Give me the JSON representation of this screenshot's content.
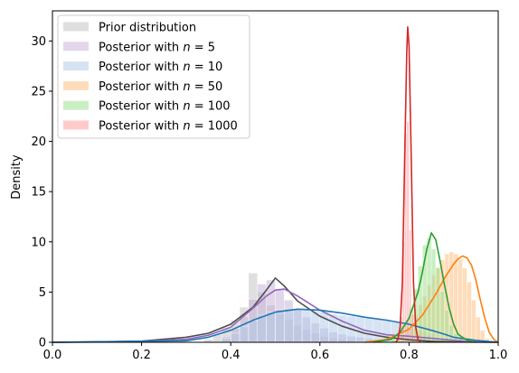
{
  "chart_data": {
    "type": "area",
    "title": "",
    "xlabel": "",
    "ylabel": "Density",
    "xlim": [
      0.0,
      1.0
    ],
    "ylim": [
      0,
      33
    ],
    "xticks": [
      "0.0",
      "0.2",
      "0.4",
      "0.6",
      "0.8",
      "1.0"
    ],
    "yticks": [
      "0",
      "5",
      "10",
      "15",
      "20",
      "25",
      "30"
    ],
    "legend_position": "top-left",
    "grid": false,
    "series": [
      {
        "name": "Prior distribution",
        "line_color": "#4d4d4d",
        "fill_color": "#bfbfbf",
        "bins": {
          "start": 0.34,
          "width": 0.02,
          "heights": [
            0.3,
            0.8,
            1.4,
            2.2,
            3.5,
            6.9,
            5.0,
            3.7,
            2.8,
            2.3,
            1.7,
            1.3,
            0.9,
            0.6,
            0.4,
            0.3,
            0.2
          ]
        },
        "kde": [
          [
            0.0,
            0.0
          ],
          [
            0.1,
            0.03
          ],
          [
            0.2,
            0.12
          ],
          [
            0.3,
            0.5
          ],
          [
            0.35,
            0.9
          ],
          [
            0.4,
            1.8
          ],
          [
            0.45,
            3.5
          ],
          [
            0.48,
            5.2
          ],
          [
            0.5,
            6.4
          ],
          [
            0.52,
            5.6
          ],
          [
            0.55,
            4.1
          ],
          [
            0.6,
            2.6
          ],
          [
            0.65,
            1.6
          ],
          [
            0.7,
            0.9
          ],
          [
            0.75,
            0.5
          ],
          [
            0.8,
            0.25
          ],
          [
            0.85,
            0.1
          ],
          [
            0.9,
            0.04
          ],
          [
            1.0,
            0.0
          ]
        ]
      },
      {
        "name": "Posterior with n = 5",
        "line_color": "#9467bd",
        "fill_color": "#c5b0d5",
        "bins": {
          "start": 0.38,
          "width": 0.02,
          "heights": [
            0.6,
            1.4,
            2.6,
            4.3,
            5.8,
            6.2,
            5.3,
            4.2,
            3.3,
            2.5,
            1.9,
            1.4,
            1.0,
            0.8,
            0.6,
            0.5,
            0.4,
            0.3,
            0.2,
            0.1
          ]
        },
        "kde": [
          [
            0.0,
            0.0
          ],
          [
            0.2,
            0.1
          ],
          [
            0.3,
            0.3
          ],
          [
            0.35,
            0.7
          ],
          [
            0.4,
            1.5
          ],
          [
            0.45,
            3.4
          ],
          [
            0.48,
            4.6
          ],
          [
            0.5,
            5.2
          ],
          [
            0.52,
            5.3
          ],
          [
            0.55,
            4.6
          ],
          [
            0.6,
            3.2
          ],
          [
            0.65,
            2.1
          ],
          [
            0.7,
            1.2
          ],
          [
            0.75,
            0.75
          ],
          [
            0.8,
            0.6
          ],
          [
            0.85,
            0.4
          ],
          [
            0.9,
            0.2
          ],
          [
            0.95,
            0.05
          ],
          [
            1.0,
            0.0
          ]
        ]
      },
      {
        "name": "Posterior with n = 10",
        "line_color": "#1f77b4",
        "fill_color": "#aec7e8",
        "bins": {
          "start": 0.38,
          "width": 0.02,
          "heights": [
            0.4,
            0.9,
            1.6,
            2.2,
            2.7,
            3.0,
            3.3,
            3.4,
            3.3,
            3.2,
            3.1,
            3.0,
            2.8,
            2.7,
            2.6,
            2.5,
            2.4,
            2.3,
            2.2,
            2.0,
            1.7,
            1.4,
            1.1,
            0.8
          ]
        },
        "kde": [
          [
            0.0,
            0.0
          ],
          [
            0.3,
            0.15
          ],
          [
            0.35,
            0.5
          ],
          [
            0.4,
            1.2
          ],
          [
            0.45,
            2.2
          ],
          [
            0.5,
            3.0
          ],
          [
            0.55,
            3.3
          ],
          [
            0.6,
            3.2
          ],
          [
            0.65,
            2.9
          ],
          [
            0.7,
            2.5
          ],
          [
            0.75,
            2.2
          ],
          [
            0.8,
            1.8
          ],
          [
            0.85,
            1.2
          ],
          [
            0.88,
            0.8
          ],
          [
            0.9,
            0.5
          ],
          [
            0.95,
            0.2
          ],
          [
            1.0,
            0.0
          ]
        ]
      },
      {
        "name": "Posterior with n = 50",
        "line_color": "#ff7f0e",
        "fill_color": "#ffbb78",
        "bins": {
          "start": 0.76,
          "width": 0.01,
          "heights": [
            0.2,
            0.4,
            0.7,
            1.2,
            1.9,
            2.7,
            3.7,
            4.6,
            5.7,
            6.7,
            7.5,
            8.2,
            8.8,
            9.0,
            8.8,
            8.3,
            7.4,
            6.0,
            4.2,
            2.5,
            1.2,
            0.4,
            0.1
          ]
        },
        "kde": [
          [
            0.7,
            0.0
          ],
          [
            0.75,
            0.3
          ],
          [
            0.8,
            1.3
          ],
          [
            0.83,
            2.7
          ],
          [
            0.86,
            4.8
          ],
          [
            0.88,
            6.4
          ],
          [
            0.9,
            7.8
          ],
          [
            0.91,
            8.3
          ],
          [
            0.92,
            8.6
          ],
          [
            0.93,
            8.4
          ],
          [
            0.94,
            7.7
          ],
          [
            0.95,
            6.2
          ],
          [
            0.96,
            4.2
          ],
          [
            0.97,
            2.4
          ],
          [
            0.98,
            1.0
          ],
          [
            0.99,
            0.3
          ],
          [
            1.0,
            0.0
          ]
        ]
      },
      {
        "name": "Posterior with n = 100",
        "line_color": "#2ca02c",
        "fill_color": "#98df8a",
        "bins": {
          "start": 0.76,
          "width": 0.01,
          "heights": [
            0.3,
            0.7,
            1.3,
            2.2,
            3.4,
            5.3,
            7.6,
            9.7,
            10.4,
            9.3,
            7.4,
            5.1,
            3.2,
            1.7,
            0.9,
            0.4,
            0.2
          ]
        },
        "kde": [
          [
            0.72,
            0.0
          ],
          [
            0.76,
            0.3
          ],
          [
            0.78,
            1.0
          ],
          [
            0.8,
            2.4
          ],
          [
            0.82,
            5.0
          ],
          [
            0.83,
            7.0
          ],
          [
            0.84,
            9.3
          ],
          [
            0.85,
            10.9
          ],
          [
            0.86,
            10.2
          ],
          [
            0.87,
            8.0
          ],
          [
            0.88,
            5.6
          ],
          [
            0.89,
            3.4
          ],
          [
            0.9,
            1.8
          ],
          [
            0.91,
            0.8
          ],
          [
            0.93,
            0.2
          ],
          [
            0.95,
            0.0
          ]
        ]
      },
      {
        "name": "Posterior with n = 1000",
        "line_color": "#d62728",
        "fill_color": "#ff9896",
        "bins": {
          "start": 0.775,
          "width": 0.005,
          "heights": [
            0.3,
            2.5,
            10.0,
            20.8,
            22.0,
            11.2,
            2.8,
            0.6,
            0.1
          ]
        },
        "kde": [
          [
            0.77,
            0.0
          ],
          [
            0.775,
            0.3
          ],
          [
            0.78,
            1.5
          ],
          [
            0.785,
            6.0
          ],
          [
            0.79,
            18.0
          ],
          [
            0.795,
            29.0
          ],
          [
            0.797,
            31.4
          ],
          [
            0.8,
            29.5
          ],
          [
            0.805,
            18.0
          ],
          [
            0.81,
            6.0
          ],
          [
            0.815,
            1.5
          ],
          [
            0.82,
            0.3
          ],
          [
            0.825,
            0.0
          ]
        ]
      }
    ]
  }
}
